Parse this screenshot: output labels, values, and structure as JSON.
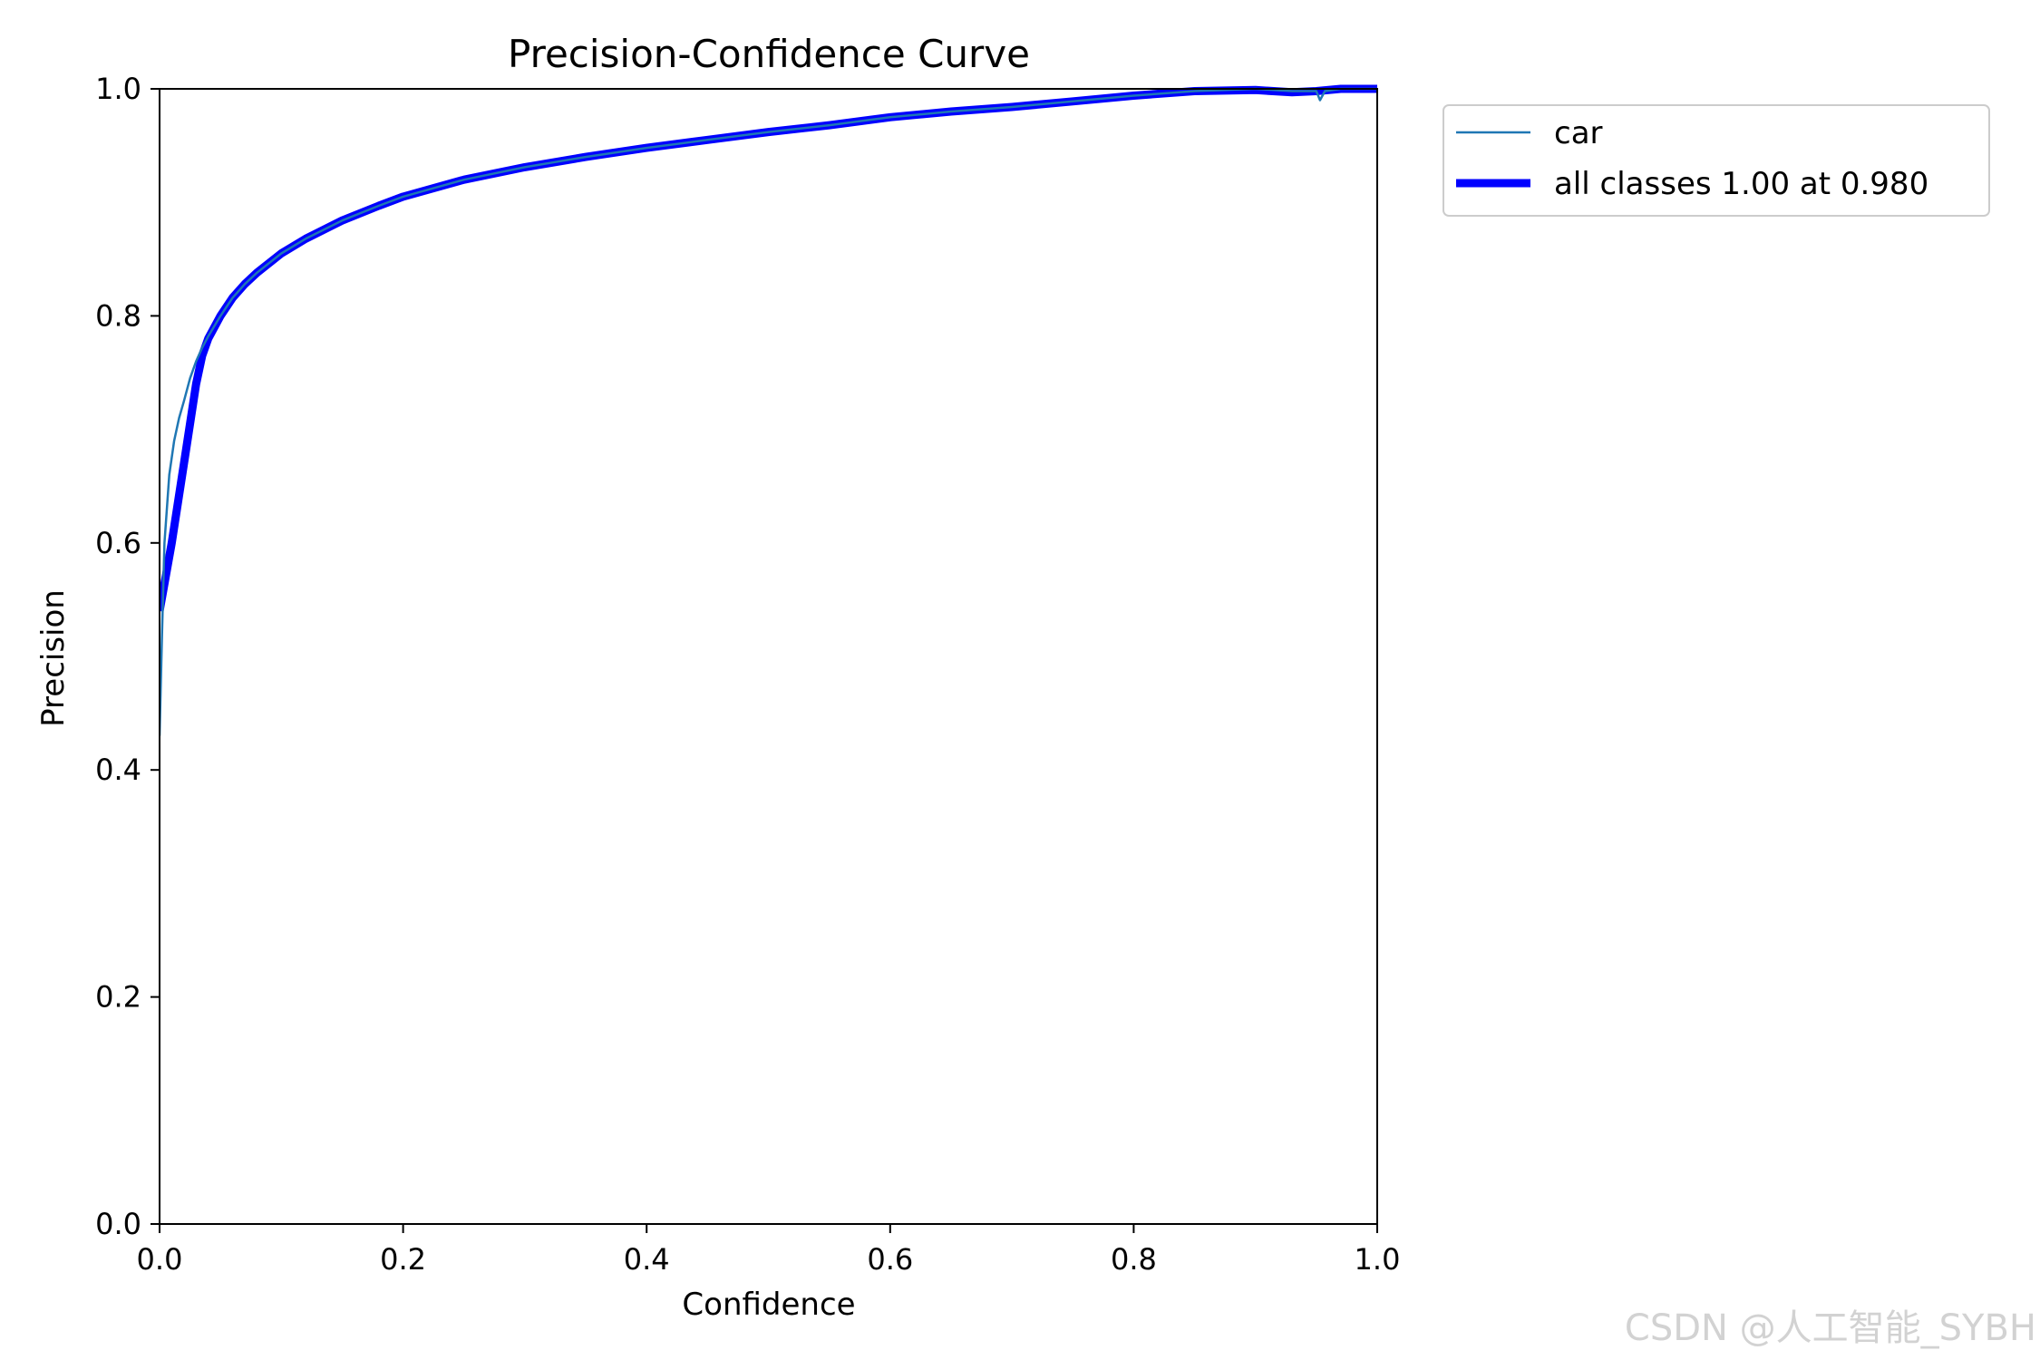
{
  "chart_data": {
    "type": "line",
    "title": "Precision-Confidence Curve",
    "xlabel": "Confidence",
    "ylabel": "Precision",
    "xlim": [
      0.0,
      1.0
    ],
    "ylim": [
      0.0,
      1.0
    ],
    "xticks": [
      "0.0",
      "0.2",
      "0.4",
      "0.6",
      "0.8",
      "1.0"
    ],
    "yticks": [
      "0.0",
      "0.2",
      "0.4",
      "0.6",
      "0.8",
      "1.0"
    ],
    "grid": false,
    "legend_position": "outside-top-right",
    "series": [
      {
        "name": "car",
        "color": "#1f77b4",
        "style": "thin",
        "x": [
          0.0,
          0.002,
          0.004,
          0.008,
          0.012,
          0.016,
          0.02,
          0.025,
          0.03,
          0.035,
          0.04,
          0.05,
          0.06,
          0.07,
          0.08,
          0.1,
          0.12,
          0.15,
          0.18,
          0.2,
          0.25,
          0.3,
          0.35,
          0.4,
          0.45,
          0.5,
          0.55,
          0.6,
          0.65,
          0.7,
          0.75,
          0.8,
          0.85,
          0.9,
          0.93,
          0.95,
          0.953,
          0.957,
          0.97,
          1.0
        ],
        "y": [
          0.43,
          0.52,
          0.6,
          0.66,
          0.69,
          0.71,
          0.725,
          0.745,
          0.76,
          0.772,
          0.782,
          0.8,
          0.816,
          0.828,
          0.838,
          0.855,
          0.868,
          0.884,
          0.897,
          0.905,
          0.92,
          0.931,
          0.94,
          0.948,
          0.955,
          0.962,
          0.968,
          0.975,
          0.98,
          0.984,
          0.989,
          0.994,
          0.998,
          1.0,
          0.998,
          0.998,
          0.99,
          0.998,
          1.0,
          1.0
        ]
      },
      {
        "name": "all classes 1.00 at 0.980",
        "color": "#0000ff",
        "style": "thick",
        "x": [
          0.0,
          0.01,
          0.02,
          0.03,
          0.035,
          0.04,
          0.05,
          0.06,
          0.07,
          0.08,
          0.1,
          0.12,
          0.15,
          0.18,
          0.2,
          0.25,
          0.3,
          0.35,
          0.4,
          0.45,
          0.5,
          0.55,
          0.6,
          0.65,
          0.7,
          0.75,
          0.8,
          0.85,
          0.9,
          0.93,
          0.95,
          0.97,
          0.98,
          1.0
        ],
        "y": [
          0.54,
          0.6,
          0.67,
          0.74,
          0.765,
          0.78,
          0.8,
          0.816,
          0.828,
          0.838,
          0.855,
          0.868,
          0.884,
          0.897,
          0.905,
          0.92,
          0.931,
          0.94,
          0.948,
          0.955,
          0.962,
          0.968,
          0.975,
          0.98,
          0.984,
          0.989,
          0.994,
          0.998,
          0.999,
          0.997,
          0.998,
          1.0,
          1.0,
          1.0
        ]
      }
    ]
  },
  "watermark": "CSDN @人工智能_SYBH"
}
